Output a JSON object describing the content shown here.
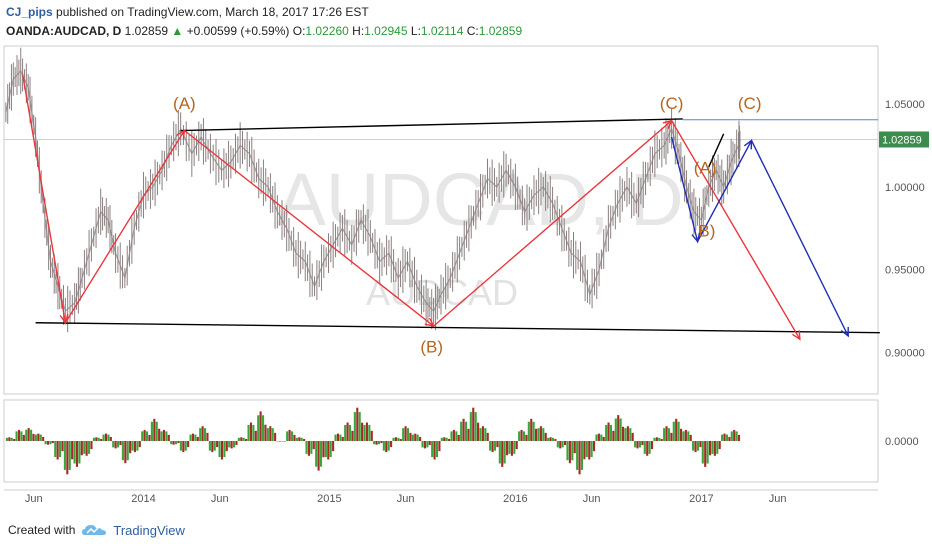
{
  "header": {
    "author": "CJ_pips",
    "published_text": "published on TradingView.com, March 18, 2017 17:26 EST",
    "symbol": "OANDA:AUDCAD, D",
    "last": "1.02859",
    "change": "+0.00599",
    "change_pct": "(+0.59%)",
    "o_label": "O:",
    "o_value": "1.02260",
    "h_label": "H:",
    "h_value": "1.02945",
    "l_label": "L:",
    "l_value": "1.02114",
    "c_label": "C:",
    "c_value": "1.02859"
  },
  "footer": {
    "created_with": "Created with",
    "brand": "TradingView"
  },
  "watermark": {
    "big": "AUDCAD, D",
    "small": "AUDCAD"
  },
  "chart_data": {
    "type": "line",
    "xlim": [
      2013.25,
      2017.95
    ],
    "ylim": [
      0.875,
      1.085
    ],
    "x_ticks": [
      {
        "x": 2013.41,
        "label": "Jun"
      },
      {
        "x": 2014.0,
        "label": "2014"
      },
      {
        "x": 2014.41,
        "label": "Jun"
      },
      {
        "x": 2015.0,
        "label": "2015"
      },
      {
        "x": 2015.41,
        "label": "Jun"
      },
      {
        "x": 2016.0,
        "label": "2016"
      },
      {
        "x": 2016.41,
        "label": "Jun"
      },
      {
        "x": 2017.0,
        "label": "2017"
      },
      {
        "x": 2017.41,
        "label": "Jun"
      }
    ],
    "y_ticks": [
      {
        "y": 1.05,
        "label": "1.05000"
      },
      {
        "y": 1.0,
        "label": "1.00000"
      },
      {
        "y": 0.95,
        "label": "0.95000"
      },
      {
        "y": 0.9,
        "label": "0.90000"
      }
    ],
    "price_label": {
      "y": 1.02859,
      "label": "1.02859"
    },
    "price_path": [
      [
        2013.26,
        1.045
      ],
      [
        2013.3,
        1.065
      ],
      [
        2013.34,
        1.07
      ],
      [
        2013.38,
        1.06
      ],
      [
        2013.42,
        1.03
      ],
      [
        2013.46,
        0.99
      ],
      [
        2013.5,
        0.955
      ],
      [
        2013.54,
        0.94
      ],
      [
        2013.58,
        0.925
      ],
      [
        2013.63,
        0.93
      ],
      [
        2013.67,
        0.945
      ],
      [
        2013.72,
        0.965
      ],
      [
        2013.77,
        0.985
      ],
      [
        2013.81,
        0.98
      ],
      [
        2013.85,
        0.96
      ],
      [
        2013.9,
        0.945
      ],
      [
        2013.95,
        0.975
      ],
      [
        2014.0,
        0.995
      ],
      [
        2014.05,
        1.0
      ],
      [
        2014.1,
        1.01
      ],
      [
        2014.15,
        1.025
      ],
      [
        2014.2,
        1.035
      ],
      [
        2014.26,
        1.02
      ],
      [
        2014.31,
        1.03
      ],
      [
        2014.36,
        1.02
      ],
      [
        2014.42,
        1.01
      ],
      [
        2014.47,
        1.015
      ],
      [
        2014.52,
        1.025
      ],
      [
        2014.57,
        1.02
      ],
      [
        2014.62,
        1.005
      ],
      [
        2014.67,
        1.0
      ],
      [
        2014.72,
        0.985
      ],
      [
        2014.77,
        0.975
      ],
      [
        2014.82,
        0.96
      ],
      [
        2014.87,
        0.955
      ],
      [
        2014.92,
        0.94
      ],
      [
        2014.97,
        0.955
      ],
      [
        2015.02,
        0.965
      ],
      [
        2015.07,
        0.975
      ],
      [
        2015.12,
        0.965
      ],
      [
        2015.17,
        0.98
      ],
      [
        2015.22,
        0.97
      ],
      [
        2015.27,
        0.955
      ],
      [
        2015.32,
        0.96
      ],
      [
        2015.37,
        0.945
      ],
      [
        2015.42,
        0.955
      ],
      [
        2015.47,
        0.94
      ],
      [
        2015.52,
        0.93
      ],
      [
        2015.56,
        0.925
      ],
      [
        2015.6,
        0.935
      ],
      [
        2015.65,
        0.945
      ],
      [
        2015.7,
        0.96
      ],
      [
        2015.75,
        0.975
      ],
      [
        2015.8,
        0.99
      ],
      [
        2015.85,
        1.005
      ],
      [
        2015.9,
        1.0
      ],
      [
        2015.95,
        1.01
      ],
      [
        2016.0,
        1.0
      ],
      [
        2016.05,
        0.985
      ],
      [
        2016.1,
        0.995
      ],
      [
        2016.15,
        1.0
      ],
      [
        2016.2,
        0.99
      ],
      [
        2016.25,
        0.975
      ],
      [
        2016.3,
        0.96
      ],
      [
        2016.35,
        0.955
      ],
      [
        2016.4,
        0.935
      ],
      [
        2016.45,
        0.95
      ],
      [
        2016.5,
        0.975
      ],
      [
        2016.55,
        0.99
      ],
      [
        2016.6,
        1.0
      ],
      [
        2016.65,
        0.99
      ],
      [
        2016.7,
        1.005
      ],
      [
        2016.75,
        1.02
      ],
      [
        2016.8,
        1.025
      ],
      [
        2016.84,
        1.035
      ],
      [
        2016.88,
        1.02
      ],
      [
        2016.92,
        1.0
      ],
      [
        2016.96,
        0.985
      ],
      [
        2017.0,
        0.98
      ],
      [
        2017.04,
        1.0
      ],
      [
        2017.08,
        1.01
      ],
      [
        2017.12,
        1.0
      ],
      [
        2017.16,
        1.015
      ],
      [
        2017.2,
        1.025
      ],
      [
        2017.21,
        1.0286
      ]
    ],
    "trendlines": [
      {
        "color": "#000000",
        "points": [
          [
            2013.42,
            0.918
          ],
          [
            2017.96,
            0.912
          ]
        ]
      },
      {
        "color": "#000000",
        "points": [
          [
            2014.2,
            1.034
          ],
          [
            2016.9,
            1.041
          ]
        ]
      },
      {
        "color": "#000000",
        "points": [
          [
            2017.04,
            1.012
          ],
          [
            2017.12,
            1.032
          ]
        ]
      }
    ],
    "hlines": [
      {
        "color": "#5a86c9",
        "y": 1.0405,
        "x_start": 2016.9
      },
      {
        "color": "#c9d2da",
        "y": 1.02859
      }
    ],
    "wave_red": [
      [
        2013.35,
        1.068
      ],
      [
        2013.58,
        0.918
      ],
      [
        2014.22,
        1.034
      ],
      [
        2015.56,
        0.916
      ],
      [
        2016.84,
        1.04
      ],
      [
        2017.53,
        0.908
      ]
    ],
    "wave_blue": [
      [
        2016.84,
        1.03
      ],
      [
        2016.98,
        0.967
      ],
      [
        2017.27,
        1.028
      ],
      [
        2017.79,
        0.91
      ]
    ],
    "wave_labels": [
      {
        "x": 2014.22,
        "y": 1.047,
        "text": "(A)"
      },
      {
        "x": 2015.55,
        "y": 0.9,
        "text": "(B)"
      },
      {
        "x": 2016.84,
        "y": 1.047,
        "text": "(C)"
      },
      {
        "x": 2017.26,
        "y": 1.047,
        "text": "(C)"
      },
      {
        "x": 2017.02,
        "y": 1.008,
        "text": "(A)"
      },
      {
        "x": 2017.03,
        "y": 0.97,
        "text": "B)"
      }
    ],
    "oscillator": {
      "ylim": [
        -1,
        1
      ],
      "y_tick": {
        "y": 0,
        "label": "0.0000"
      },
      "values": [
        0.1,
        0.3,
        0.35,
        0.2,
        -0.1,
        -0.5,
        -0.9,
        -0.7,
        -0.4,
        0.1,
        0.2,
        -0.2,
        -0.6,
        -0.3,
        0.3,
        0.6,
        0.3,
        -0.1,
        -0.3,
        0.2,
        0.4,
        -0.3,
        -0.5,
        -0.2,
        0.1,
        0.5,
        0.8,
        0.4,
        0.0,
        0.3,
        0.1,
        -0.4,
        -0.8,
        -0.5,
        0.2,
        0.5,
        0.9,
        0.5,
        -0.1,
        -0.3,
        0.1,
        0.4,
        0.2,
        -0.2,
        -0.5,
        0.1,
        0.3,
        0.6,
        0.9,
        0.4,
        -0.3,
        -0.7,
        -0.4,
        0.3,
        0.6,
        0.4,
        0.1,
        -0.2,
        -0.6,
        -0.9,
        -0.5,
        0.2,
        0.5,
        0.7,
        0.4,
        -0.2,
        -0.4,
        0.1,
        0.4,
        0.6,
        0.3,
        -0.3,
        -0.7,
        -0.4,
        0.2,
        0.3
      ]
    }
  },
  "colors": {
    "red_wave": "#e8383d",
    "blue_wave": "#1f2fb5",
    "label": "#b8651b",
    "price": "#8a7f7f",
    "osc_up": "#3aa63a",
    "osc_down": "#a52a2a"
  }
}
